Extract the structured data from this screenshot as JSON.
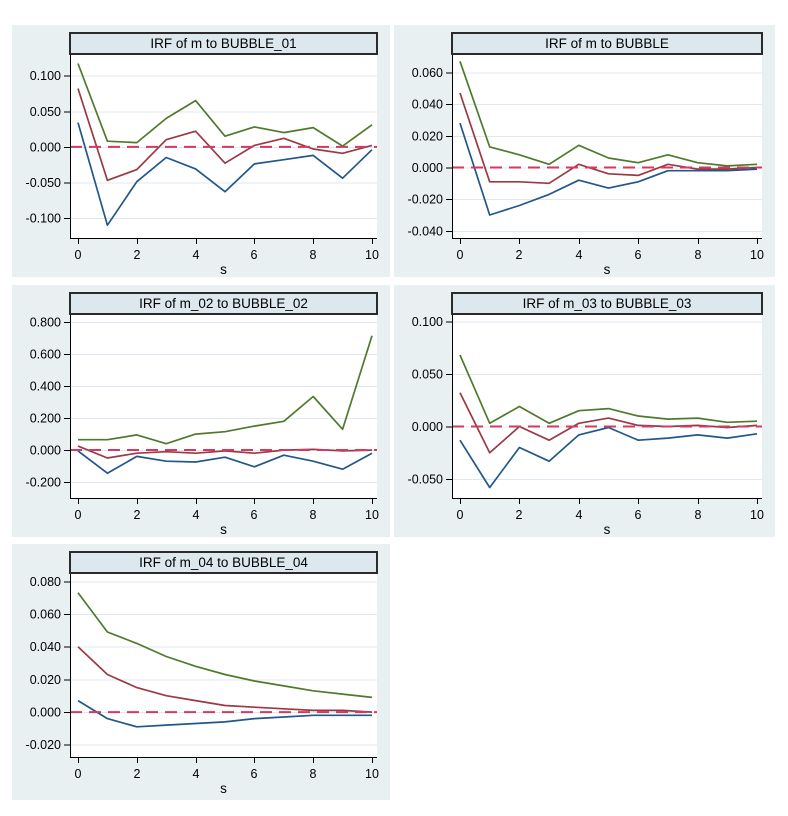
{
  "style": {
    "page_bg": "#ffffff",
    "panel_bg": "#e9f0f2",
    "title_bg": "#dde8ee",
    "title_border": "#2b2b2b",
    "plot_bg": "#ffffff",
    "grid": "#dfe8f0",
    "axis": "#000000",
    "zero_line": "#d6395f",
    "upper_band_color": "#4f7a2b",
    "irf_color": "#9a3a44",
    "lower_band_color": "#21578a"
  },
  "chart_data": [
    {
      "type": "line",
      "title": "IRF of m to BUBBLE_01",
      "xlabel": "s",
      "x": [
        0,
        1,
        2,
        3,
        4,
        5,
        6,
        7,
        8,
        9,
        10
      ],
      "x_ticks": [
        0,
        2,
        4,
        6,
        8,
        10
      ],
      "x_max": 10,
      "y_ticks": [
        0.1,
        0.05,
        0.0,
        -0.05,
        -0.1
      ],
      "ylim": [
        -0.128,
        0.129
      ],
      "grid": true,
      "legend": "none",
      "zero_line": true,
      "series": [
        {
          "name": "upper-band",
          "color": "#4f7a2b",
          "values": [
            0.117,
            0.008,
            0.006,
            0.04,
            0.065,
            0.015,
            0.028,
            0.02,
            0.027,
            0.001,
            0.031
          ]
        },
        {
          "name": "irf",
          "color": "#9a3a44",
          "values": [
            0.082,
            -0.047,
            -0.032,
            0.01,
            0.022,
            -0.023,
            0.002,
            0.012,
            -0.003,
            -0.009,
            0.002
          ]
        },
        {
          "name": "lower-band",
          "color": "#21578a",
          "values": [
            0.034,
            -0.11,
            -0.049,
            -0.015,
            -0.031,
            -0.063,
            -0.024,
            -0.018,
            -0.012,
            -0.044,
            -0.004
          ]
        }
      ]
    },
    {
      "type": "line",
      "title": "IRF of m to BUBBLE",
      "xlabel": "s",
      "x": [
        0,
        1,
        2,
        3,
        4,
        5,
        6,
        7,
        8,
        9,
        10
      ],
      "x_ticks": [
        0,
        2,
        4,
        6,
        8,
        10
      ],
      "x_max": 10,
      "y_ticks": [
        0.06,
        0.04,
        0.02,
        0.0,
        -0.02,
        -0.04
      ],
      "ylim": [
        -0.0445,
        0.071
      ],
      "grid": true,
      "legend": "none",
      "zero_line": true,
      "series": [
        {
          "name": "upper-band",
          "color": "#4f7a2b",
          "values": [
            0.067,
            0.013,
            0.008,
            0.002,
            0.014,
            0.006,
            0.003,
            0.008,
            0.003,
            0.001,
            0.002
          ]
        },
        {
          "name": "irf",
          "color": "#9a3a44",
          "values": [
            0.047,
            -0.009,
            -0.009,
            -0.01,
            0.002,
            -0.004,
            -0.005,
            0.002,
            -0.001,
            -0.001,
            0.0
          ]
        },
        {
          "name": "lower-band",
          "color": "#21578a",
          "values": [
            0.028,
            -0.03,
            -0.024,
            -0.017,
            -0.008,
            -0.013,
            -0.009,
            -0.002,
            -0.002,
            -0.002,
            -0.001
          ]
        }
      ]
    },
    {
      "type": "line",
      "title": "IRF of m_02 to BUBBLE_02",
      "xlabel": "s",
      "x": [
        0,
        1,
        2,
        3,
        4,
        5,
        6,
        7,
        8,
        9,
        10
      ],
      "x_ticks": [
        0,
        2,
        4,
        6,
        8,
        10
      ],
      "x_max": 10,
      "y_ticks": [
        0.8,
        0.6,
        0.4,
        0.2,
        0.0,
        -0.2
      ],
      "ylim": [
        -0.3,
        0.845
      ],
      "grid": true,
      "legend": "none",
      "zero_line": true,
      "series": [
        {
          "name": "upper-band",
          "color": "#4f7a2b",
          "values": [
            0.065,
            0.065,
            0.095,
            0.04,
            0.1,
            0.115,
            0.15,
            0.18,
            0.335,
            0.13,
            0.715
          ]
        },
        {
          "name": "irf",
          "color": "#9a3a44",
          "values": [
            0.025,
            -0.05,
            -0.02,
            -0.01,
            -0.02,
            -0.005,
            -0.02,
            0.0,
            0.005,
            -0.005,
            0.0
          ]
        },
        {
          "name": "lower-band",
          "color": "#21578a",
          "values": [
            -0.005,
            -0.145,
            -0.04,
            -0.07,
            -0.075,
            -0.045,
            -0.105,
            -0.032,
            -0.07,
            -0.12,
            -0.02
          ]
        }
      ]
    },
    {
      "type": "line",
      "title": "IRF of m_03 to BUBBLE_03",
      "xlabel": "s",
      "x": [
        0,
        1,
        2,
        3,
        4,
        5,
        6,
        7,
        8,
        9,
        10
      ],
      "x_ticks": [
        0,
        2,
        4,
        6,
        8,
        10
      ],
      "x_max": 10,
      "y_ticks": [
        0.1,
        0.05,
        0.0,
        -0.05
      ],
      "ylim": [
        -0.068,
        0.106
      ],
      "grid": true,
      "legend": "none",
      "zero_line": true,
      "series": [
        {
          "name": "upper-band",
          "color": "#4f7a2b",
          "values": [
            0.068,
            0.003,
            0.019,
            0.003,
            0.015,
            0.017,
            0.01,
            0.007,
            0.008,
            0.004,
            0.005
          ]
        },
        {
          "name": "irf",
          "color": "#9a3a44",
          "values": [
            0.032,
            -0.025,
            0.0,
            -0.013,
            0.003,
            0.008,
            0.001,
            0.0,
            0.001,
            -0.001,
            0.001
          ]
        },
        {
          "name": "lower-band",
          "color": "#21578a",
          "values": [
            -0.013,
            -0.058,
            -0.02,
            -0.033,
            -0.008,
            -0.001,
            -0.013,
            -0.011,
            -0.008,
            -0.011,
            -0.007
          ]
        }
      ]
    },
    {
      "type": "line",
      "title": "IRF of m_04 to BUBBLE_04",
      "xlabel": "s",
      "x": [
        0,
        1,
        2,
        3,
        4,
        5,
        6,
        7,
        8,
        9,
        10
      ],
      "x_ticks": [
        0,
        2,
        4,
        6,
        8,
        10
      ],
      "x_max": 10,
      "y_ticks": [
        0.08,
        0.06,
        0.04,
        0.02,
        0.0,
        -0.02
      ],
      "ylim": [
        -0.0275,
        0.0845
      ],
      "grid": true,
      "legend": "none",
      "zero_line": true,
      "series": [
        {
          "name": "upper-band",
          "color": "#4f7a2b",
          "values": [
            0.073,
            0.049,
            0.042,
            0.034,
            0.028,
            0.023,
            0.019,
            0.016,
            0.013,
            0.011,
            0.009
          ]
        },
        {
          "name": "irf",
          "color": "#9a3a44",
          "values": [
            0.04,
            0.023,
            0.015,
            0.01,
            0.007,
            0.004,
            0.003,
            0.002,
            0.001,
            0.001,
            0.0
          ]
        },
        {
          "name": "lower-band",
          "color": "#21578a",
          "values": [
            0.007,
            -0.004,
            -0.009,
            -0.008,
            -0.007,
            -0.006,
            -0.004,
            -0.003,
            -0.002,
            -0.002,
            -0.002
          ]
        }
      ]
    }
  ]
}
